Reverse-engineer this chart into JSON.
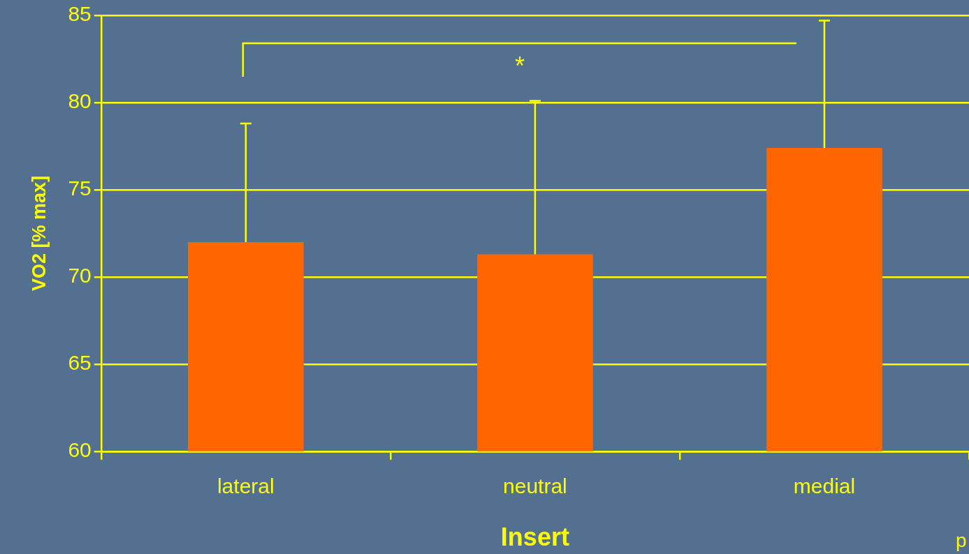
{
  "chart_data": {
    "type": "bar",
    "xlabel": "Insert",
    "ylabel": "VO2 [% max]",
    "categories": [
      "lateral",
      "neutral",
      "medial"
    ],
    "series": [
      {
        "color": "#ff6600",
        "values": [
          72.0,
          71.3,
          77.4
        ],
        "errors": [
          [
            72.0,
            78.8
          ],
          [
            71.3,
            80.1
          ],
          [
            77.4,
            84.7
          ]
        ]
      }
    ],
    "ylim": [
      60,
      85
    ],
    "yticks": [
      60,
      65,
      70,
      75,
      80,
      85
    ],
    "grid": "y",
    "legend": false,
    "annotations": [
      "*",
      "p"
    ]
  }
}
